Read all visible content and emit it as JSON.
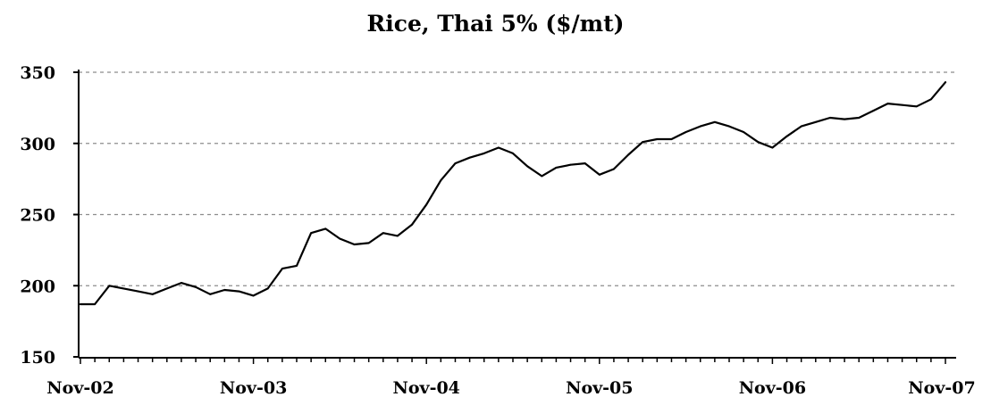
{
  "chart_data": {
    "type": "line",
    "title": "Rice, Thai 5% ($/mt)",
    "xlabel": "",
    "ylabel": "",
    "ylim": [
      150,
      350
    ],
    "y_ticks": [
      "150",
      "200",
      "250",
      "300",
      "350"
    ],
    "x_tick_labels": [
      "Nov-02",
      "Nov-03",
      "Nov-04",
      "Nov-05",
      "Nov-06",
      "Nov-07"
    ],
    "grid": "horizontal dashed",
    "line_color": "#000000",
    "x_range_months": [
      0,
      60
    ],
    "series": [
      {
        "values": [
          [
            0,
            187
          ],
          [
            1,
            187
          ],
          [
            2,
            200
          ],
          [
            3,
            198
          ],
          [
            4,
            196
          ],
          [
            5,
            194
          ],
          [
            6,
            198
          ],
          [
            7,
            202
          ],
          [
            8,
            199
          ],
          [
            9,
            194
          ],
          [
            10,
            197
          ],
          [
            11,
            196
          ],
          [
            12,
            193
          ],
          [
            13,
            198
          ],
          [
            14,
            212
          ],
          [
            15,
            214
          ],
          [
            16,
            237
          ],
          [
            17,
            240
          ],
          [
            18,
            233
          ],
          [
            19,
            229
          ],
          [
            20,
            230
          ],
          [
            21,
            237
          ],
          [
            22,
            235
          ],
          [
            23,
            243
          ],
          [
            24,
            257
          ],
          [
            25,
            274
          ],
          [
            26,
            286
          ],
          [
            27,
            290
          ],
          [
            28,
            293
          ],
          [
            29,
            297
          ],
          [
            30,
            293
          ],
          [
            31,
            284
          ],
          [
            32,
            277
          ],
          [
            33,
            283
          ],
          [
            34,
            285
          ],
          [
            35,
            286
          ],
          [
            36,
            278
          ],
          [
            37,
            282
          ],
          [
            38,
            292
          ],
          [
            39,
            301
          ],
          [
            40,
            303
          ],
          [
            41,
            303
          ],
          [
            42,
            308
          ],
          [
            43,
            312
          ],
          [
            44,
            315
          ],
          [
            45,
            312
          ],
          [
            46,
            308
          ],
          [
            47,
            301
          ],
          [
            48,
            297
          ],
          [
            49,
            305
          ],
          [
            50,
            312
          ],
          [
            51,
            315
          ],
          [
            52,
            318
          ],
          [
            53,
            317
          ],
          [
            54,
            318
          ],
          [
            55,
            323
          ],
          [
            56,
            328
          ],
          [
            57,
            327
          ],
          [
            58,
            326
          ],
          [
            59,
            331
          ],
          [
            60,
            343
          ]
        ]
      }
    ]
  }
}
